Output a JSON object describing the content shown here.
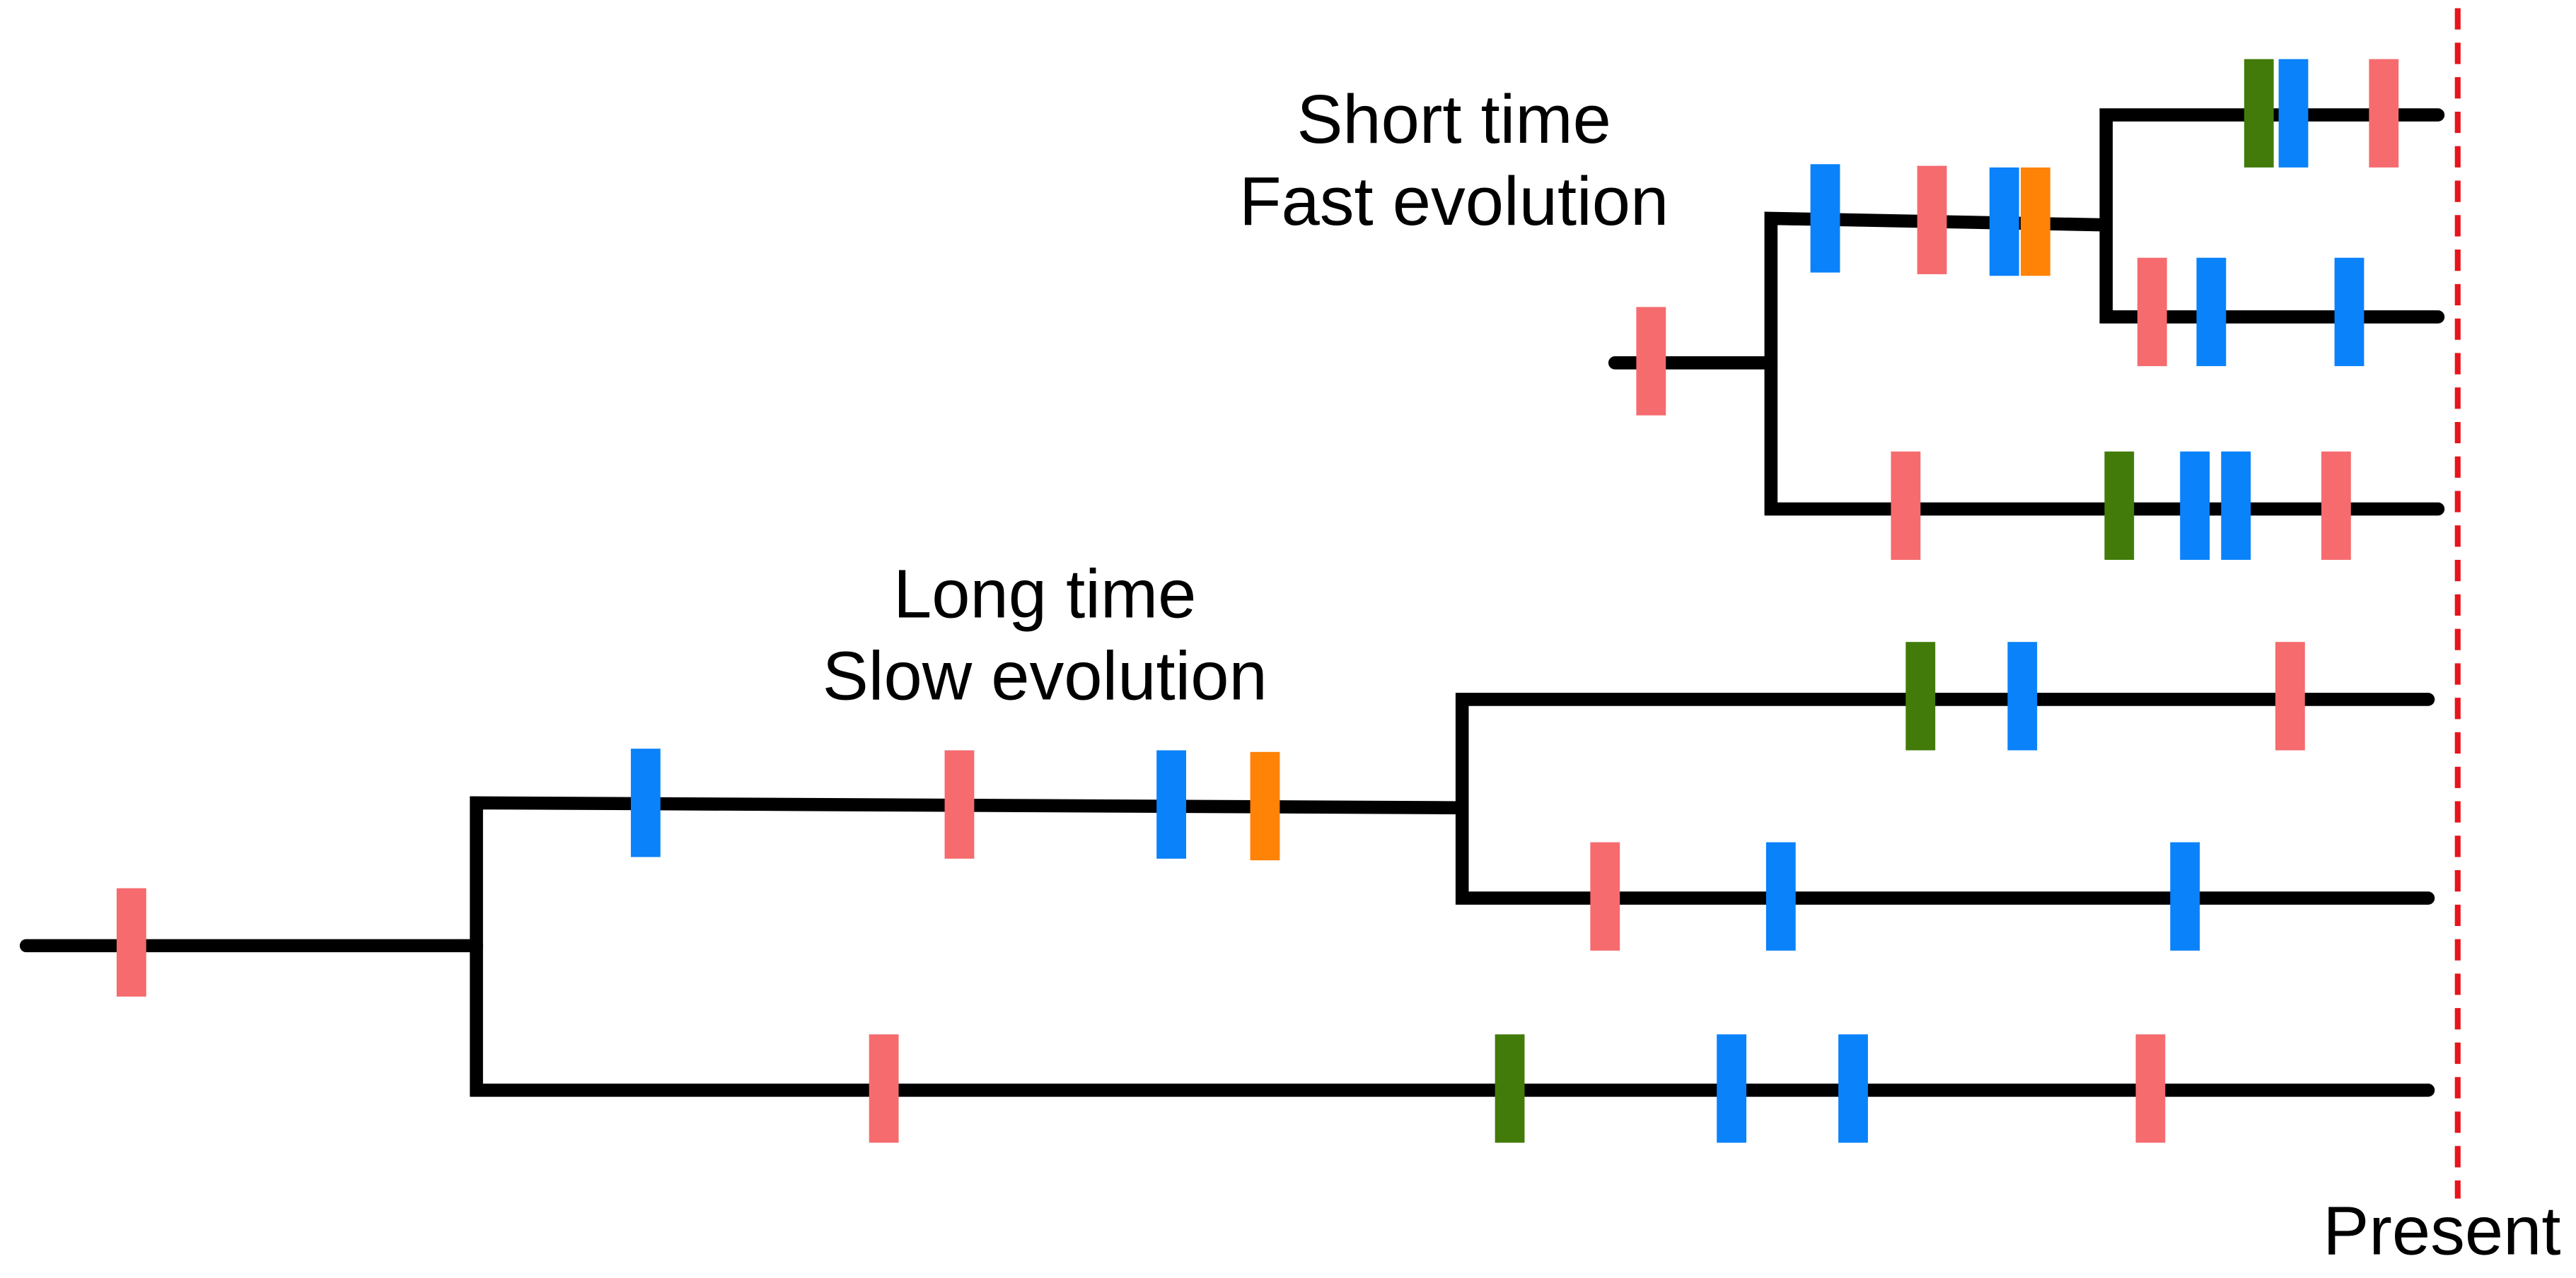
{
  "labels": {
    "short_time": "Short time",
    "fast_evolution": "Fast evolution",
    "long_time": "Long time",
    "slow_evolution": "Slow evolution",
    "present": "Present"
  },
  "colors": {
    "branch": "#000000",
    "present_line": "#E8141C",
    "pink": "#F56B6E",
    "blue": "#0A82FA",
    "green": "#427B0A",
    "orange": "#FF8307"
  }
}
